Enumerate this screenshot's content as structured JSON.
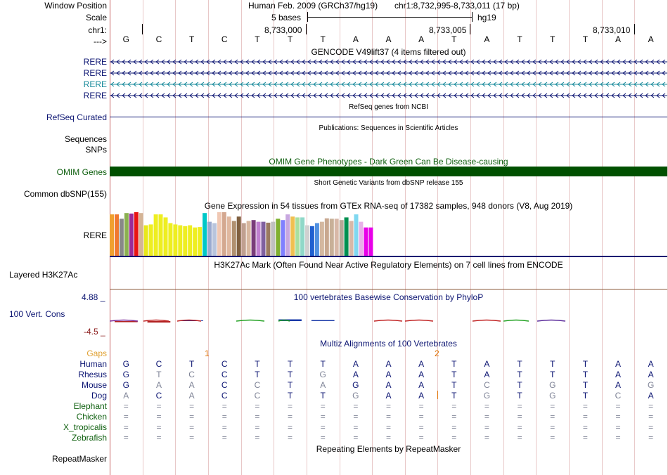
{
  "header": {
    "window_position_label": "Window Position",
    "assembly": "Human Feb. 2009 (GRCh37/hg19)",
    "position": "chr1:8,732,995-8,733,011 (17 bp)",
    "scale_label": "Scale",
    "scale_text": "5 bases",
    "scale_db": "hg19",
    "chrom_label": "chr1:",
    "ticks": [
      "8,733,000",
      "8,733,005",
      "8,733,010"
    ],
    "strand_label": "--->"
  },
  "bases": [
    "G",
    "C",
    "T",
    "C",
    "T",
    "T",
    "T",
    "A",
    "A",
    "A",
    "T",
    "A",
    "T",
    "T",
    "T",
    "A",
    "A"
  ],
  "gencode": {
    "title": "GENCODE V49lift37 (4 items filtered out)",
    "transcripts": [
      {
        "label": "RERE",
        "color": "#0b1472"
      },
      {
        "label": "RERE",
        "color": "#0b1472"
      },
      {
        "label": "RERE",
        "color": "#16899a"
      },
      {
        "label": "RERE",
        "color": "#0b1472"
      }
    ]
  },
  "refseq": {
    "title": "RefSeq genes from NCBI",
    "label": "RefSeq Curated"
  },
  "publications": {
    "title": "Publications: Sequences in Scientific Articles",
    "label1": "Sequences",
    "label2": "SNPs"
  },
  "omim": {
    "title": "OMIM Gene Phenotypes - Dark Green Can Be Disease-causing",
    "label": "OMIM Genes",
    "color": "#005000"
  },
  "dbsnp": {
    "title": "Short Genetic Variants from dbSNP release 155",
    "label": "Common dbSNP(155)"
  },
  "gtex": {
    "title": "Gene Expression in 54 tissues from GTEx RNA-seq of 17382 samples, 948 donors (V8, Aug 2019)",
    "label": "RERE",
    "values": [
      0.95,
      0.95,
      0.85,
      0.98,
      0.97,
      1.0,
      0.98,
      0.7,
      0.72,
      0.95,
      0.95,
      0.88,
      0.75,
      0.72,
      0.7,
      0.68,
      0.7,
      0.65,
      0.66,
      0.98,
      0.78,
      0.75,
      1.0,
      1.0,
      0.9,
      0.8,
      0.9,
      0.75,
      0.8,
      0.82,
      0.78,
      0.78,
      0.76,
      0.78,
      0.85,
      0.82,
      0.95,
      0.9,
      0.88,
      0.88,
      0.7,
      0.68,
      0.75,
      0.78,
      0.86,
      0.85,
      0.85,
      0.82,
      0.88,
      0.8,
      0.95,
      0.78,
      0.65,
      0.65
    ],
    "colors": [
      "#f0a030",
      "#f07830",
      "#888888",
      "#8bb050",
      "#9a2a9a",
      "#e81414",
      "#d4b496",
      "#e8e81a",
      "#eeee20",
      "#eeee20",
      "#eeee20",
      "#eeee20",
      "#eeee20",
      "#eeee20",
      "#eeee20",
      "#eeee20",
      "#eeee20",
      "#eeee20",
      "#eeee20",
      "#00c8c8",
      "#9aaad0",
      "#b8c4dc",
      "#f0c8b4",
      "#d4a890",
      "#e0b8a0",
      "#b09070",
      "#806040",
      "#c0a090",
      "#d8b8a0",
      "#7a3c7a",
      "#c080d0",
      "#8060a0",
      "#9a7a60",
      "#c0c0c0",
      "#80b030",
      "#8080ff",
      "#c8a8e0",
      "#f0c050",
      "#a8e0a0",
      "#90d8c8",
      "#d0d0d0",
      "#2060d0",
      "#5090e0",
      "#d4b8a0",
      "#c8a890",
      "#c8b098",
      "#d8b8a8",
      "#b8a898",
      "#009050",
      "#d8b8a8",
      "#80d8f0",
      "#e8b0e8",
      "#e800e8",
      "#e800e8"
    ]
  },
  "h3k27ac": {
    "title": "H3K27Ac Mark (Often Found Near Active Regulatory Elements) on 7 cell lines from ENCODE",
    "label": "Layered H3K27Ac"
  },
  "conservation": {
    "title": "100 vertebrates Basewise Conservation by PhyloP",
    "label": "100 Vert. Cons",
    "ymax_label": "4.88 _",
    "ymin_label": "-4.5 _",
    "ymax": 4.88,
    "ymin": -4.5,
    "scores": [
      -0.3,
      -0.4,
      0.2,
      0.0,
      0.0,
      0.5,
      0.3,
      0.0,
      0.0,
      0.0,
      0.0,
      0.0,
      0.0,
      0.0,
      0.0,
      0.0,
      0.0
    ]
  },
  "multiz": {
    "title": "Multiz Alignments of 100 Vertebrates",
    "gaps_label": "Gaps",
    "gap_markers": [
      "1",
      "2"
    ],
    "species": [
      {
        "name": "Human",
        "bases": "GCTCTTTAAATATTTAA",
        "dim": "00000000000000000"
      },
      {
        "name": "Rhesus",
        "bases": "GTCCTTGAAATATTTAA",
        "dim": "01100010000000000"
      },
      {
        "name": "Mouse",
        "bases": "GAACCTAGAATCTGTAG",
        "dim": "01101010000101001"
      },
      {
        "name": "Dog",
        "bases": "ACACCTTGAATGTGTCA",
        "dim": "10101001000101010"
      },
      {
        "name": "Elephant",
        "bases": "=================",
        "dim": "11111111111111111"
      },
      {
        "name": "Chicken",
        "bases": "=================",
        "dim": "11111111111111111"
      },
      {
        "name": "X_tropicalis",
        "bases": "=================",
        "dim": "11111111111111111"
      },
      {
        "name": "Zebrafish",
        "bases": "=================",
        "dim": "11111111111111111"
      }
    ]
  },
  "repeatmasker": {
    "title": "Repeating Elements by RepeatMasker",
    "label": "RepeatMasker"
  }
}
